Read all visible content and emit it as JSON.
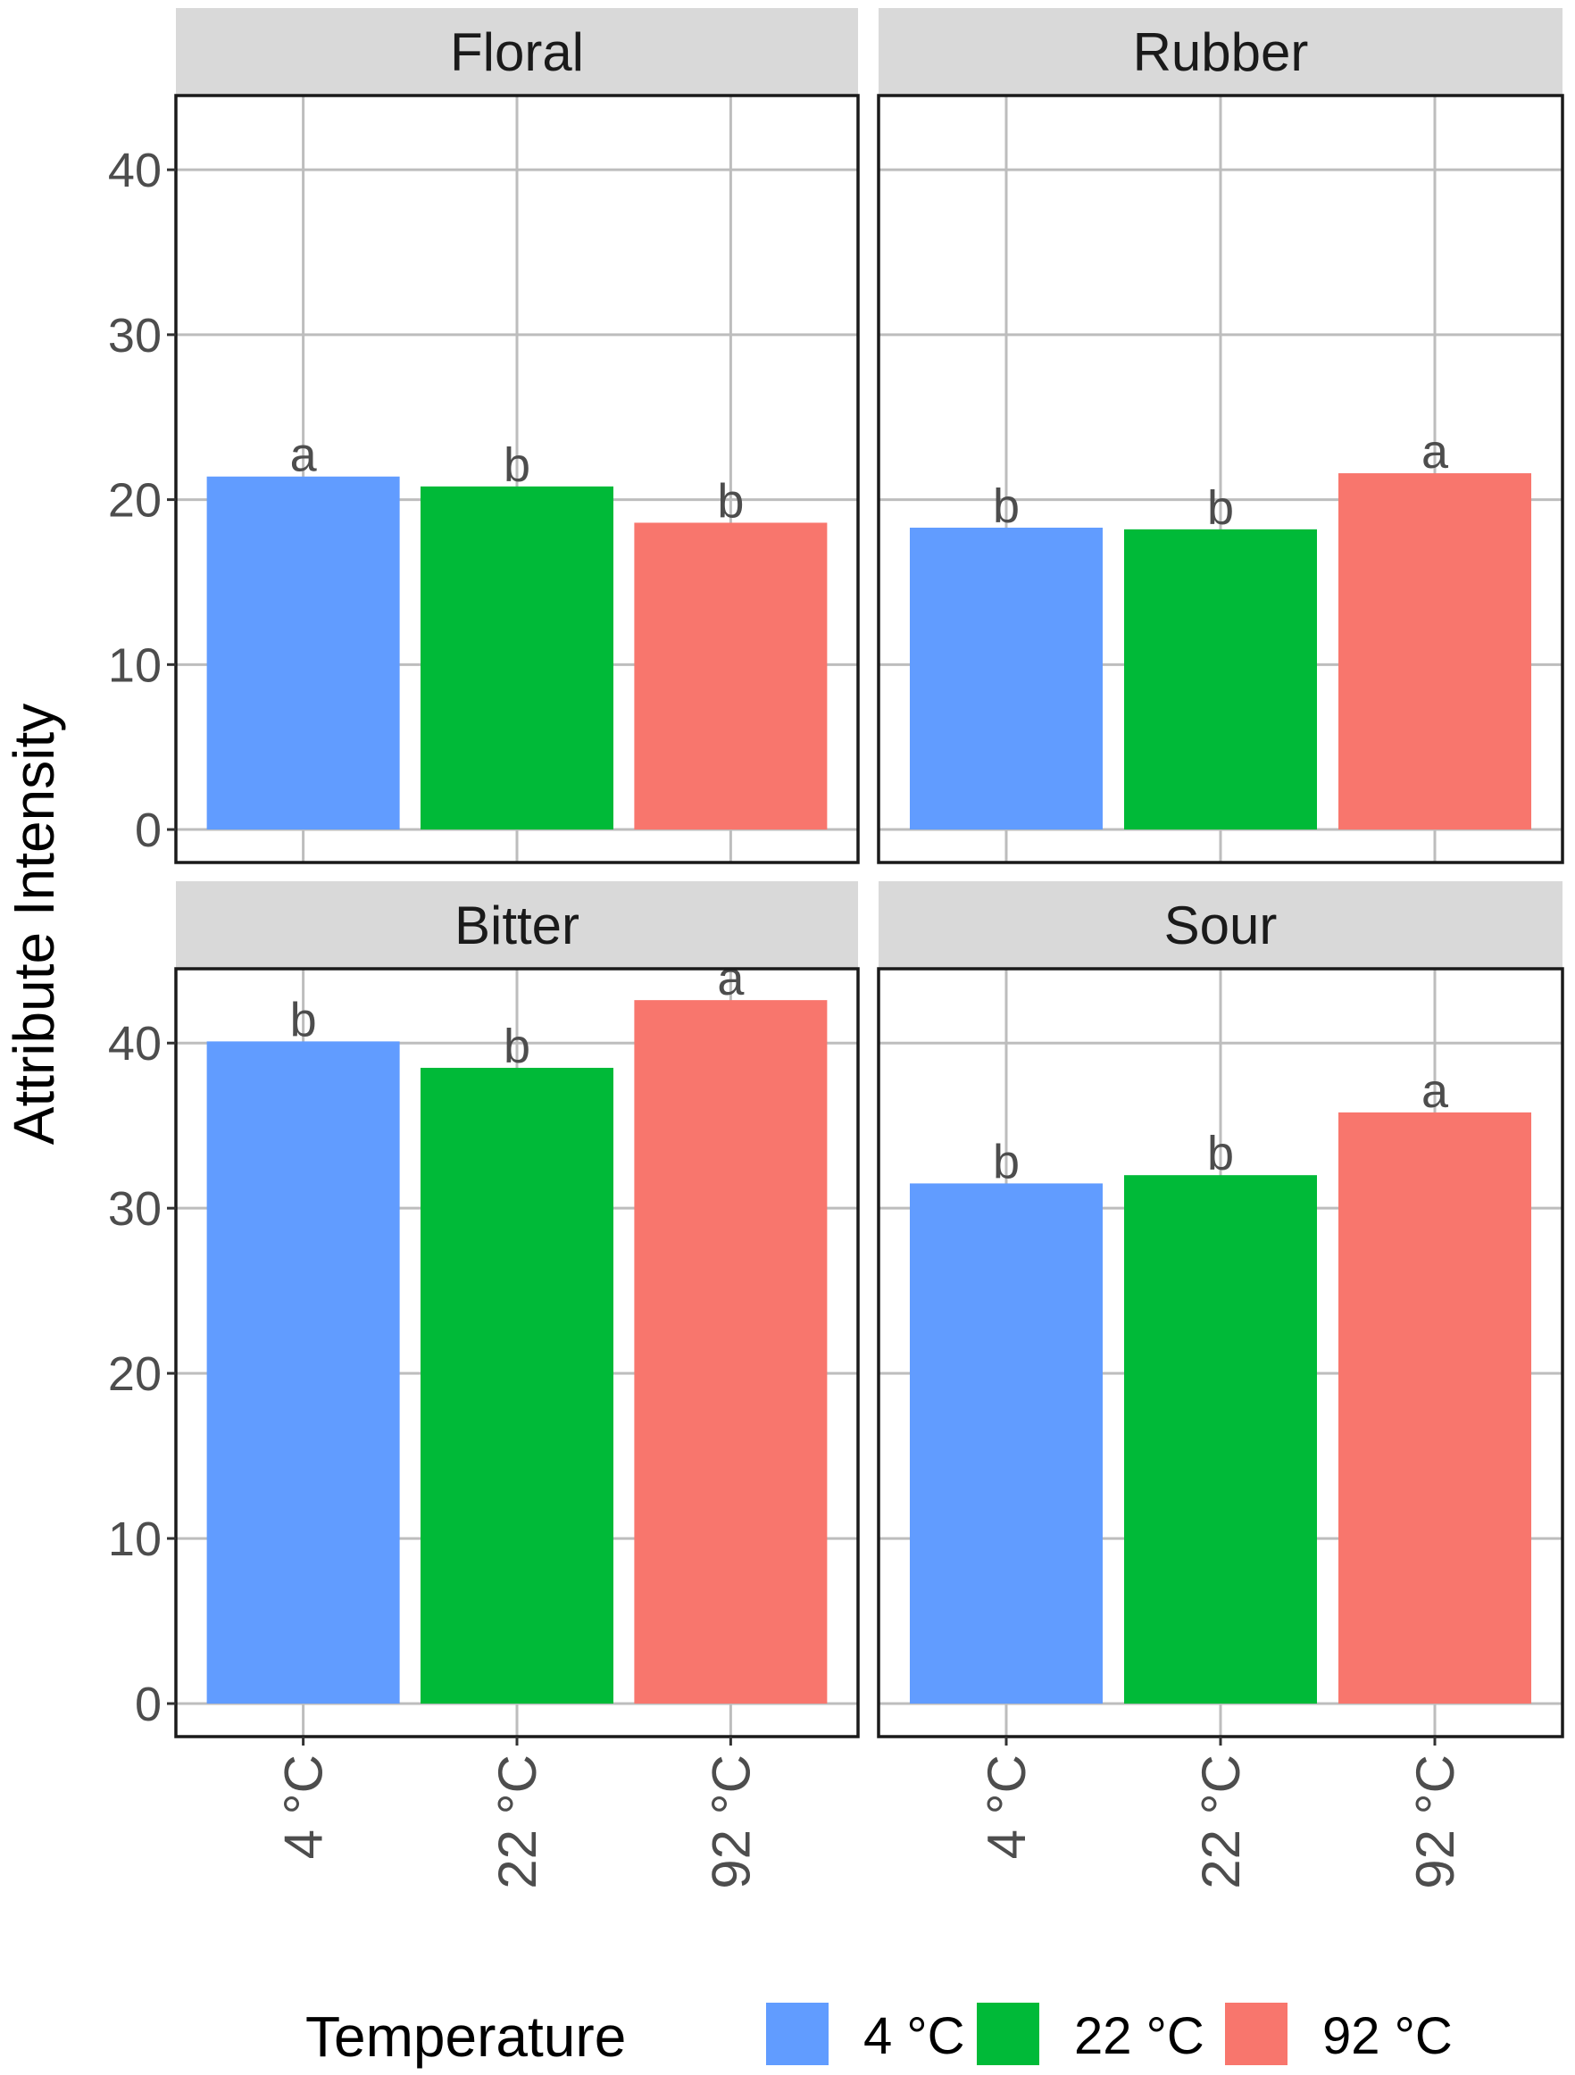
{
  "chart_data": {
    "type": "bar",
    "ylabel": "Attribute Intensity",
    "xlabel": "",
    "ylim": [
      -2,
      44.5
    ],
    "yticks": [
      0,
      10,
      20,
      30,
      40
    ],
    "ytick_labels": [
      "0",
      "10",
      "20",
      "30",
      "40"
    ],
    "categories": [
      "4 °C",
      "22 °C",
      "92 °C"
    ],
    "legend": {
      "title": "Temperature",
      "position": "bottom",
      "entries": [
        {
          "label": "4 °C",
          "color": "#619CFF"
        },
        {
          "label": "22 °C",
          "color": "#00BA38"
        },
        {
          "label": "92 °C",
          "color": "#F8766D"
        }
      ]
    },
    "grid": true,
    "facets": [
      {
        "name": "Floral",
        "values": [
          21.4,
          20.8,
          18.6
        ],
        "letters": [
          "a",
          "b",
          "b"
        ]
      },
      {
        "name": "Rubber",
        "values": [
          18.3,
          18.2,
          21.6
        ],
        "letters": [
          "b",
          "b",
          "a"
        ]
      },
      {
        "name": "Bitter",
        "values": [
          40.1,
          38.5,
          42.6
        ],
        "letters": [
          "b",
          "b",
          "a"
        ]
      },
      {
        "name": "Sour",
        "values": [
          31.5,
          32.0,
          35.8
        ],
        "letters": [
          "b",
          "b",
          "a"
        ]
      }
    ]
  }
}
